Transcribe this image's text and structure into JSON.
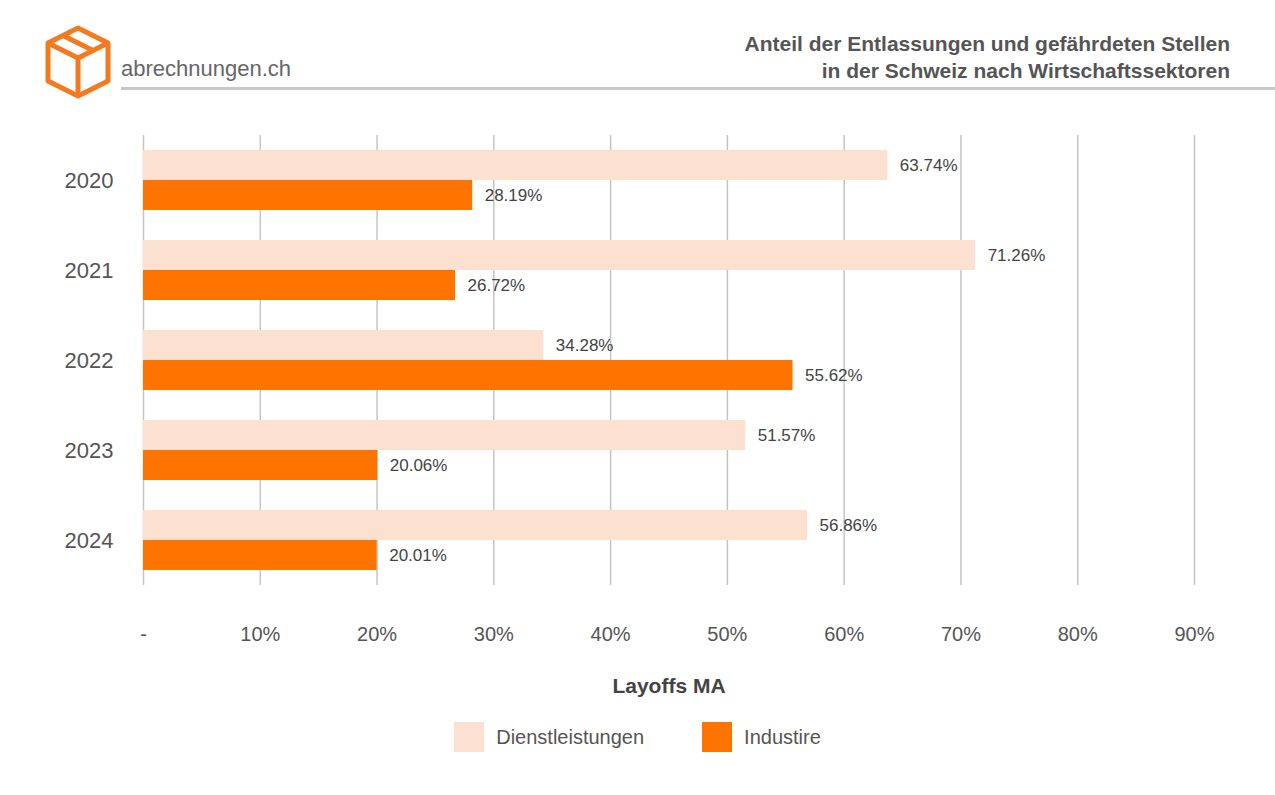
{
  "chart_data": {
    "type": "bar",
    "orientation": "horizontal",
    "title": "Anteil der Entlassungen und gefährdeten Stellen\nin der Schweiz nach Wirtschaftssektoren",
    "annotations": [
      "abrechnungen.ch"
    ],
    "xlabel": "Layoffs MA",
    "categories": [
      "2020",
      "2021",
      "2022",
      "2023",
      "2024"
    ],
    "series": [
      {
        "name": "Dienstleistungen",
        "color": "#fde1d0",
        "values": [
          63.74,
          71.26,
          34.28,
          51.57,
          56.86
        ],
        "value_labels": [
          "63.74%",
          "71.26%",
          "34.28%",
          "51.57%",
          "56.86%"
        ]
      },
      {
        "name": "Industire",
        "color": "#ff7400",
        "values": [
          28.19,
          26.72,
          55.62,
          20.06,
          20.01
        ],
        "value_labels": [
          "28.19%",
          "26.72%",
          "55.62%",
          "20.06%",
          "20.01%"
        ]
      }
    ],
    "xlim": [
      0,
      90
    ],
    "xticks": [
      {
        "value": 0,
        "label": "-"
      },
      {
        "value": 10,
        "label": "10%"
      },
      {
        "value": 20,
        "label": "20%"
      },
      {
        "value": 30,
        "label": "30%"
      },
      {
        "value": 40,
        "label": "40%"
      },
      {
        "value": 50,
        "label": "50%"
      },
      {
        "value": 60,
        "label": "60%"
      },
      {
        "value": 70,
        "label": "70%"
      },
      {
        "value": 80,
        "label": "80%"
      },
      {
        "value": 90,
        "label": "90%"
      }
    ],
    "grid": true,
    "data_labels": true,
    "legend": "bottom"
  }
}
